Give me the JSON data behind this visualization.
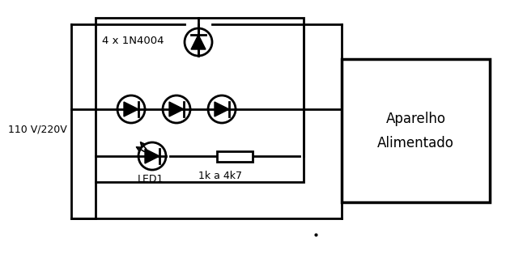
{
  "bg_color": "#ffffff",
  "line_color": "#000000",
  "line_width": 2.0,
  "fig_width": 6.25,
  "fig_height": 3.14,
  "labels": {
    "voltage": "110 V/220V",
    "diodes": "4 x 1N4004",
    "led": "LED1",
    "resistor": "1k a 4k7",
    "box_line1": "Aparelho",
    "box_line2": "Alimentado"
  }
}
